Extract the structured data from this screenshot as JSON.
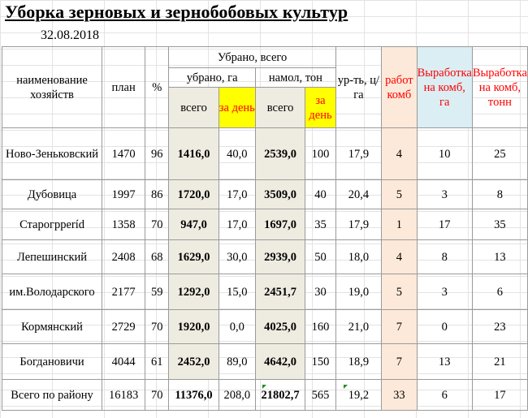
{
  "title": "Уборка зерновых и зернобобовых культур",
  "date": "32.08.2018",
  "headers": {
    "farm_name": "наименование хозяйств",
    "plan": "план",
    "percent": "%",
    "harvested_total": "Убрано, всего",
    "harvested_ha": "убрано, га",
    "threshed_t": "намол, тон",
    "total": "всего",
    "per_day": "за день",
    "yield": "ур-ть, ц/га",
    "working_combines": "работ комб",
    "output_ha": "Выработка на комб, га",
    "output_t": "Выработка на комб, тонн"
  },
  "rows": [
    {
      "name": "Ново-Зеньковский",
      "plan": "1470",
      "pct": "96",
      "ha_total": "1416,0",
      "ha_day": "40,0",
      "t_total": "2539,0",
      "t_day": "100",
      "yield": "17,9",
      "combines": "4",
      "out_ha": "10",
      "out_t": "25"
    },
    {
      "name": "Дубовица",
      "plan": "1997",
      "pct": "86",
      "ha_total": "1720,0",
      "ha_day": "17,0",
      "t_total": "3509,0",
      "t_day": "40",
      "yield": "20,4",
      "combines": "5",
      "out_ha": "3",
      "out_t": "8"
    },
    {
      "name": "Старогрperíd",
      "plan": "1358",
      "pct": "70",
      "ha_total": "947,0",
      "ha_day": "17,0",
      "t_total": "1697,0",
      "t_day": "35",
      "yield": "17,9",
      "combines": "1",
      "out_ha": "17",
      "out_t": "35"
    },
    {
      "name": "Лепешинский",
      "plan": "2408",
      "pct": "68",
      "ha_total": "1629,0",
      "ha_day": "30,0",
      "t_total": "2939,0",
      "t_day": "50",
      "yield": "18,0",
      "combines": "4",
      "out_ha": "8",
      "out_t": "13"
    },
    {
      "name": "им.Володарского",
      "plan": "2177",
      "pct": "59",
      "ha_total": "1292,0",
      "ha_day": "15,0",
      "t_total": "2451,7",
      "t_day": "30",
      "yield": "19,0",
      "combines": "5",
      "out_ha": "3",
      "out_t": "6"
    },
    {
      "name": "Кормянский",
      "plan": "2729",
      "pct": "70",
      "ha_total": "1920,0",
      "ha_day": "0,0",
      "t_total": "4025,0",
      "t_day": "160",
      "yield": "21,0",
      "combines": "7",
      "out_ha": "0",
      "out_t": "23"
    },
    {
      "name": "Богдановичи",
      "plan": "4044",
      "pct": "61",
      "ha_total": "2452,0",
      "ha_day": "89,0",
      "t_total": "4642,0",
      "t_day": "150",
      "yield": "18,9",
      "combines": "7",
      "out_ha": "13",
      "out_t": "21"
    }
  ],
  "total": {
    "name": "Всего по району",
    "plan": "16183",
    "pct": "70",
    "ha_total": "11376,0",
    "ha_day": "208,0",
    "t_total": "21802,7",
    "t_day": "565",
    "yield": "19,2",
    "combines": "33",
    "out_ha": "6",
    "out_t": "17"
  },
  "colors": {
    "yellow_fill": "#ffff00",
    "red_text": "#ff0000",
    "peach_fill": "#fde9d9",
    "blue_fill": "#daeef3",
    "shade_fill": "#eeece1"
  }
}
